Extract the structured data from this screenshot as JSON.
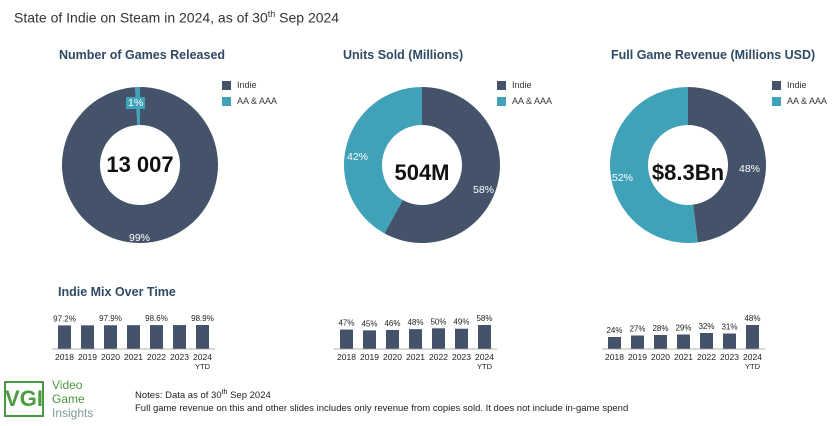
{
  "title": {
    "text": "State of Indie on Steam in 2024, as of 30",
    "sup": "th",
    "tail": " Sep 2024"
  },
  "colors": {
    "indie": "#44536a",
    "aa": "#3fa2b8",
    "small_slice_label": "#3fa2b8"
  },
  "legend": {
    "indie": "Indie",
    "aa": "AA & AAA"
  },
  "donuts": [
    {
      "title": "Number of Games Released",
      "center": "13 007",
      "indie_label": "99%",
      "aa_label": "1%"
    },
    {
      "title": "Units Sold (Millions)",
      "center": "504M",
      "indie_label": "58%",
      "aa_label": "42%"
    },
    {
      "title": "Full Game Revenue (Millions USD)",
      "center": "$8.3Bn",
      "indie_label": "48%",
      "aa_label": "52%"
    }
  ],
  "mix_title": "Indie Mix Over Time",
  "chart_data": [
    {
      "type": "pie",
      "title": "Number of Games Released",
      "labels": [
        "Indie",
        "AA & AAA"
      ],
      "values": [
        99,
        1
      ],
      "center_text": "13 007"
    },
    {
      "type": "pie",
      "title": "Units Sold (Millions)",
      "labels": [
        "Indie",
        "AA & AAA"
      ],
      "values": [
        58,
        42
      ],
      "center_text": "504M"
    },
    {
      "type": "pie",
      "title": "Full Game Revenue (Millions USD)",
      "labels": [
        "Indie",
        "AA & AAA"
      ],
      "values": [
        48,
        52
      ],
      "center_text": "$8.3Bn"
    },
    {
      "type": "bar",
      "title": "Indie Mix Over Time",
      "categories": [
        "2018",
        "2019",
        "2020",
        "2021",
        "2022",
        "2023",
        "2024 YTD"
      ],
      "values": [
        97.2,
        97.5,
        97.9,
        98.2,
        98.6,
        98.7,
        98.9
      ],
      "data_labels": [
        "97.2%",
        "",
        "97.9%",
        "",
        "98.6%",
        "",
        "98.9%"
      ]
    },
    {
      "type": "bar",
      "categories": [
        "2018",
        "2019",
        "2020",
        "2021",
        "2022",
        "2023",
        "2024 YTD"
      ],
      "values": [
        47,
        45,
        46,
        48,
        50,
        49,
        58
      ],
      "data_labels": [
        "47%",
        "45%",
        "46%",
        "48%",
        "50%",
        "49%",
        "58%"
      ]
    },
    {
      "type": "bar",
      "categories": [
        "2018",
        "2019",
        "2020",
        "2021",
        "2022",
        "2023",
        "2024 YTD"
      ],
      "values": [
        24,
        27,
        28,
        29,
        32,
        31,
        48
      ],
      "data_labels": [
        "24%",
        "27%",
        "28%",
        "29%",
        "32%",
        "31%",
        "48%"
      ]
    }
  ],
  "notes": {
    "line1_pre": "Notes: Data as of 30",
    "line1_sup": "th",
    "line1_post": " Sep 2024",
    "line2": "Full game revenue on this and other slides includes only revenue from copies sold. It does not include in-game spend"
  },
  "logo": {
    "mark": "VGI",
    "line1": "Video",
    "line2": "Game",
    "line3": "Insights"
  }
}
